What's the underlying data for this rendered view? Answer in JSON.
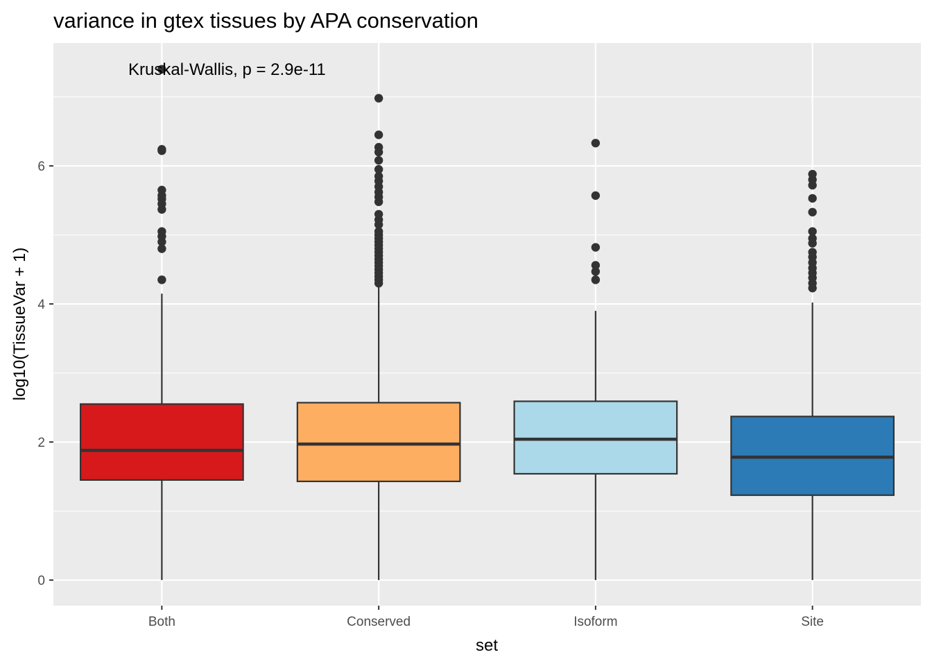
{
  "chart_data": {
    "type": "boxplot",
    "title": "variance in gtex tissues by APA conservation",
    "xlabel": "set",
    "ylabel": "log10(TissueVar + 1)",
    "ylim": [
      -0.37,
      7.78
    ],
    "yticks": [
      0,
      2,
      4,
      6
    ],
    "grid": true,
    "legend": "none",
    "annotation": "Kruskal-Wallis, p = 2.9e-11",
    "categories": [
      "Both",
      "Conserved",
      "Isoform",
      "Site"
    ],
    "colors": [
      "#d7191c",
      "#fdae61",
      "#abd9e9",
      "#2c7bb6"
    ],
    "boxes": [
      {
        "name": "Both",
        "whisker_low": 0.0,
        "q1": 1.45,
        "median": 1.88,
        "q3": 2.55,
        "whisker_high": 4.15,
        "outliers": [
          4.35,
          4.8,
          4.9,
          4.98,
          5.05,
          5.37,
          5.45,
          5.52,
          5.57,
          5.65,
          6.22,
          6.24,
          7.4
        ]
      },
      {
        "name": "Conserved",
        "whisker_low": 0.0,
        "q1": 1.43,
        "median": 1.97,
        "q3": 2.57,
        "whisker_high": 4.27,
        "outliers": [
          4.3,
          4.35,
          4.4,
          4.45,
          4.5,
          4.55,
          4.6,
          4.65,
          4.7,
          4.75,
          4.8,
          4.85,
          4.9,
          4.95,
          5.0,
          5.05,
          5.15,
          5.22,
          5.3,
          5.48,
          5.55,
          5.62,
          5.7,
          5.78,
          5.85,
          5.95,
          6.08,
          6.2,
          6.27,
          6.45,
          6.98
        ]
      },
      {
        "name": "Isoform",
        "whisker_low": 0.0,
        "q1": 1.54,
        "median": 2.04,
        "q3": 2.59,
        "whisker_high": 3.9,
        "outliers": [
          4.35,
          4.47,
          4.56,
          4.82,
          5.57,
          6.33
        ]
      },
      {
        "name": "Site",
        "whisker_low": 0.0,
        "q1": 1.23,
        "median": 1.78,
        "q3": 2.37,
        "whisker_high": 4.02,
        "outliers": [
          4.23,
          4.3,
          4.38,
          4.45,
          4.52,
          4.6,
          4.68,
          4.75,
          4.88,
          4.95,
          5.05,
          5.33,
          5.53,
          5.72,
          5.8,
          5.88
        ]
      }
    ]
  }
}
